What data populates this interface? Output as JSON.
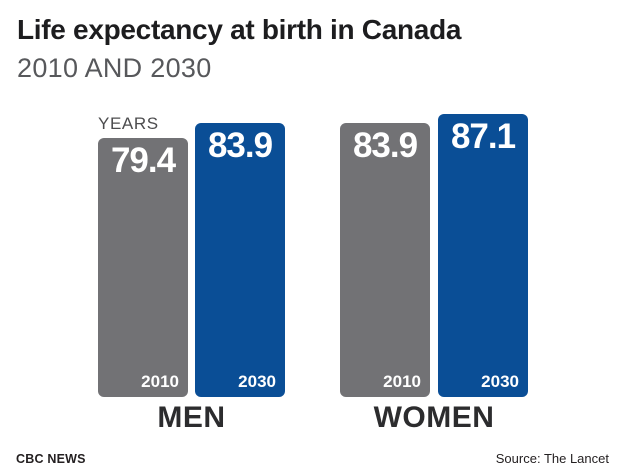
{
  "title": "Life expectancy at birth in Canada",
  "subtitle": "2010 AND 2030",
  "axis_unit_label": "YEARS",
  "footer": {
    "brand": "CBC NEWS",
    "source": "Source: The Lancet"
  },
  "colors": {
    "bar_2010_gray": "#727275",
    "bar_2030_blue": "#0a4e96",
    "value_text": "#ffffff",
    "title_text": "#1d1d1f",
    "subtitle_text": "#57585b",
    "group_label_text": "#2c2c2e",
    "background": "#ffffff"
  },
  "groups": [
    {
      "label": "MEN",
      "bars": [
        {
          "series": "2010",
          "value": "79.4",
          "year_tag": "2010"
        },
        {
          "series": "2030",
          "value": "83.9",
          "year_tag": "2030"
        }
      ]
    },
    {
      "label": "WOMEN",
      "bars": [
        {
          "series": "2010",
          "value": "83.9",
          "year_tag": "2010"
        },
        {
          "series": "2030",
          "value": "87.1",
          "year_tag": "2030"
        }
      ]
    }
  ],
  "chart_data": {
    "type": "bar",
    "title": "Life expectancy at birth in Canada",
    "subtitle": "2010 AND 2030",
    "categories": [
      "MEN",
      "WOMEN"
    ],
    "series": [
      {
        "name": "2010",
        "color": "#727275",
        "values": [
          79.4,
          83.9
        ]
      },
      {
        "name": "2030",
        "color": "#0a4e96",
        "values": [
          83.9,
          87.1
        ]
      }
    ],
    "ylabel": "YEARS",
    "unit": "years",
    "value_labels_shown": true,
    "series_labels_shown_inside_bars": true,
    "grid": false,
    "axis_ticks_shown": false,
    "baseline_not_zero": true,
    "legend_position": "none",
    "source": "Source: The Lancet",
    "attribution": "CBC NEWS"
  }
}
